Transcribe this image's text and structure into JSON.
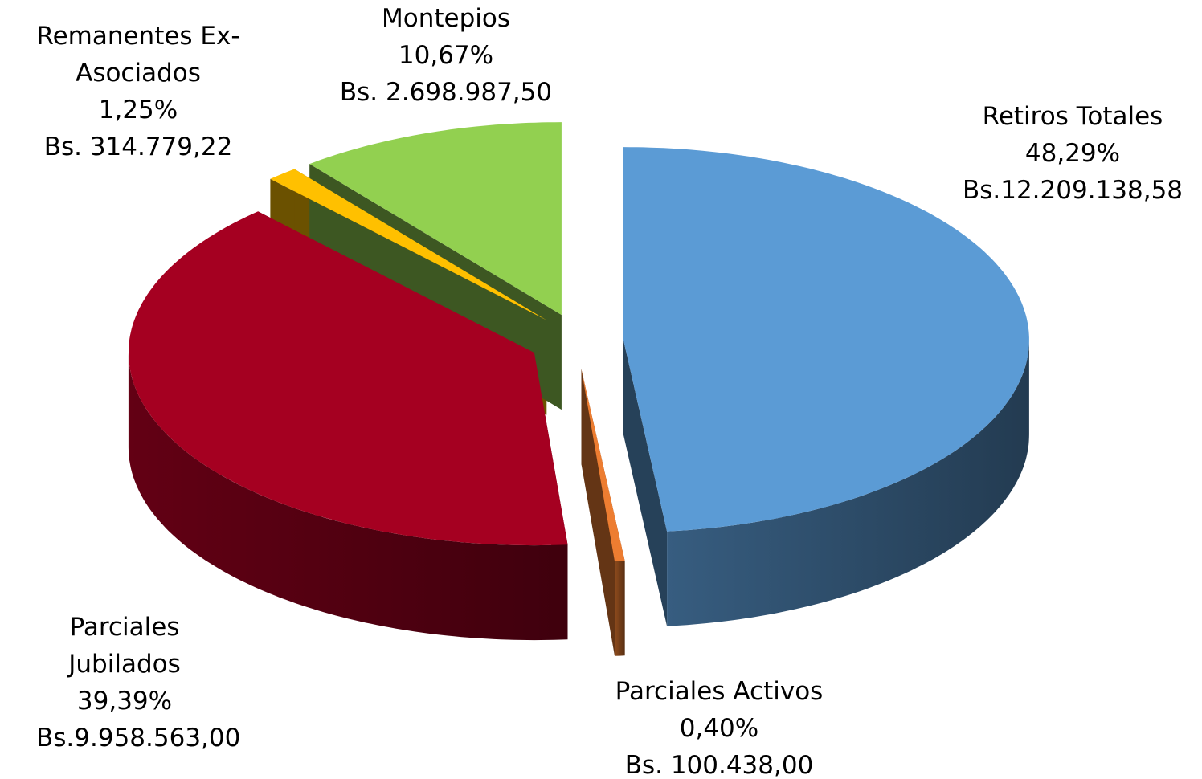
{
  "chart_data": {
    "type": "pie3d",
    "categories": [
      "Retiros Totales",
      "Parciales Activos",
      "Parciales Jubilados",
      "Remanentes Ex-Asociados",
      "Montepios"
    ],
    "values": [
      48.29,
      0.4,
      39.39,
      1.25,
      10.67
    ],
    "value_labels": [
      "48,29%",
      "0,40%",
      "39,39%",
      "1,25%",
      "10,67%"
    ],
    "amount_labels": [
      "Bs.12.209.138,58",
      "Bs. 100.438,00",
      "Bs.9.958.563,00",
      "Bs. 314.779,22",
      "Bs. 2.698.987,50"
    ],
    "colors": [
      "#5b9bd5",
      "#ed7d31",
      "#a50021",
      "#ffc000",
      "#92d050"
    ]
  }
}
